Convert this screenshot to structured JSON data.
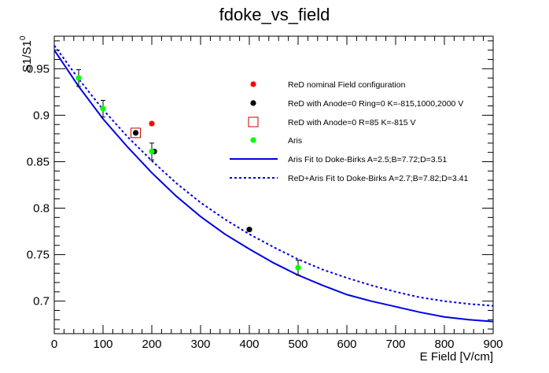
{
  "chart_data": {
    "type": "scatter",
    "title": "fdoke_vs_field",
    "xlabel": "E Field [V/cm]",
    "ylabel": "S1/S1",
    "ylabel_superscript": "0",
    "xlim": [
      0,
      900
    ],
    "ylim": [
      0.665,
      0.985
    ],
    "xticks": [
      0,
      100,
      200,
      300,
      400,
      500,
      600,
      700,
      800,
      900
    ],
    "yticks": [
      0.7,
      0.75,
      0.8,
      0.85,
      0.9,
      0.95
    ],
    "grid": false,
    "legend_position": "top-right",
    "series": [
      {
        "name": "ReD nominal Field configuration",
        "kind": "points",
        "marker": "circle",
        "color": "#ff0000",
        "x": [
          200
        ],
        "y": [
          0.891
        ],
        "yerr": [
          0.0
        ]
      },
      {
        "name": "ReD with Anode=0 Ring=0 K=-815,1000,2000 V",
        "kind": "points",
        "marker": "circle",
        "color": "#000000",
        "x": [
          167,
          205,
          400
        ],
        "y": [
          0.881,
          0.861,
          0.777
        ],
        "yerr": [
          0.0,
          0.0,
          0.0
        ]
      },
      {
        "name": "ReD with Anode=0 R=85 K=-815 V",
        "kind": "points",
        "marker": "open-square",
        "color": "#cc0000",
        "x": [
          167
        ],
        "y": [
          0.881
        ],
        "yerr": [
          0.0
        ]
      },
      {
        "name": "Aris",
        "kind": "points",
        "marker": "circle",
        "color": "#00ff00",
        "x": [
          50,
          100,
          200,
          500
        ],
        "y": [
          0.94,
          0.907,
          0.861,
          0.736
        ],
        "yerr": [
          0.009,
          0.009,
          0.009,
          0.008
        ]
      },
      {
        "name": "Aris Fit to Doke-Birks  A=2.5;B=7.72;D=3.51",
        "kind": "line",
        "style": "solid",
        "color": "#0000e6",
        "x": [
          0,
          50,
          100,
          150,
          200,
          250,
          300,
          350,
          400,
          450,
          500,
          550,
          600,
          650,
          700,
          750,
          800,
          850,
          900
        ],
        "y": [
          0.97,
          0.931,
          0.896,
          0.866,
          0.838,
          0.813,
          0.791,
          0.772,
          0.756,
          0.741,
          0.728,
          0.717,
          0.707,
          0.7,
          0.694,
          0.688,
          0.683,
          0.68,
          0.678
        ]
      },
      {
        "name": "ReD+Aris Fit to Doke-Birks A=2.7;B=7.82;D=3.41",
        "kind": "line",
        "style": "dotted",
        "color": "#0000e6",
        "x": [
          0,
          50,
          100,
          150,
          200,
          250,
          300,
          350,
          400,
          450,
          500,
          550,
          600,
          650,
          700,
          750,
          800,
          850,
          900
        ],
        "y": [
          0.975,
          0.939,
          0.906,
          0.877,
          0.851,
          0.827,
          0.806,
          0.788,
          0.772,
          0.758,
          0.745,
          0.734,
          0.725,
          0.717,
          0.71,
          0.704,
          0.7,
          0.697,
          0.695
        ]
      }
    ]
  }
}
